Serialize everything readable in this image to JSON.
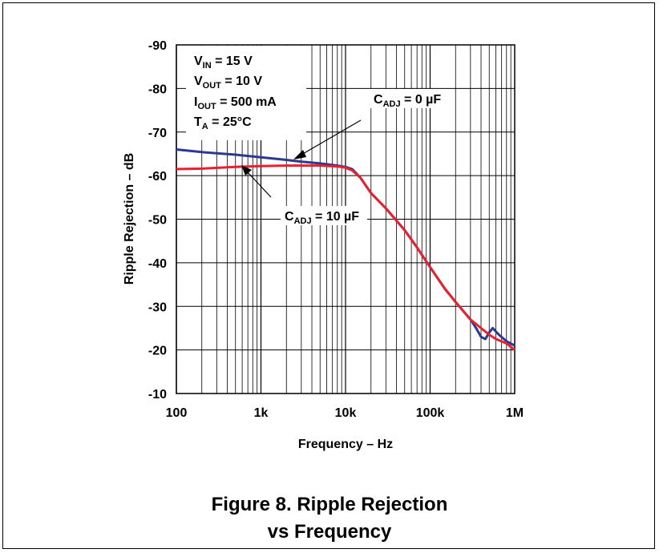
{
  "caption": {
    "line1": "Figure 8. Ripple Rejection",
    "line2": "vs Frequency"
  },
  "conditions": {
    "vin": {
      "main": "V",
      "sub": "IN",
      "rest": " = 15 V"
    },
    "vout": {
      "main": "V",
      "sub": "OUT",
      "rest": " = 10 V"
    },
    "iout": {
      "main": "I",
      "sub": "OUT",
      "rest": " = 500 mA"
    },
    "ta": {
      "main": "T",
      "sub": "A",
      "rest": " = 25°C"
    }
  },
  "annotations": {
    "cadj0": {
      "main": "C",
      "sub": "ADJ",
      "rest": " = 0 µF"
    },
    "cadj10": {
      "main": "C",
      "sub": "ADJ",
      "rest": " = 10 µF"
    }
  },
  "colors": {
    "blue": "#2b3990",
    "red": "#e8202f",
    "grid": "#000000"
  },
  "chart_data": {
    "type": "line",
    "xscale": "log",
    "xlim": [
      100,
      1000000
    ],
    "ylim": [
      -10,
      -90
    ],
    "xlabel": "Frequency – Hz",
    "ylabel": "Ripple Rejection – dB",
    "xticks": [
      100,
      1000,
      10000,
      100000,
      1000000
    ],
    "xtick_labels": [
      "100",
      "1k",
      "10k",
      "100k",
      "1M"
    ],
    "yticks": [
      -90,
      -80,
      -70,
      -60,
      -50,
      -40,
      -30,
      -20,
      -10
    ],
    "ytick_labels": [
      "-90",
      "-80",
      "-70",
      "-60",
      "-50",
      "-40",
      "-30",
      "-20",
      "-10"
    ],
    "grid": true,
    "series": [
      {
        "name": "CADJ = 0 µF",
        "color": "#2b3990",
        "points": [
          [
            100,
            -66
          ],
          [
            200,
            -65.4
          ],
          [
            500,
            -64.8
          ],
          [
            1000,
            -64.2
          ],
          [
            2000,
            -63.6
          ],
          [
            3000,
            -63.2
          ],
          [
            5000,
            -62.8
          ],
          [
            8000,
            -62.3
          ],
          [
            10000,
            -62
          ],
          [
            12000,
            -61.5
          ],
          [
            15000,
            -59.5
          ],
          [
            20000,
            -56
          ],
          [
            30000,
            -52.5
          ],
          [
            50000,
            -47.5
          ],
          [
            70000,
            -43.5
          ],
          [
            100000,
            -39
          ],
          [
            150000,
            -34
          ],
          [
            200000,
            -31
          ],
          [
            300000,
            -27
          ],
          [
            350000,
            -25
          ],
          [
            400000,
            -23
          ],
          [
            450000,
            -22.5
          ],
          [
            500000,
            -24
          ],
          [
            550000,
            -25
          ],
          [
            650000,
            -23.5
          ],
          [
            800000,
            -22
          ],
          [
            1000000,
            -21
          ]
        ]
      },
      {
        "name": "CADJ = 10 µF",
        "color": "#e8202f",
        "points": [
          [
            100,
            -61.5
          ],
          [
            200,
            -61.6
          ],
          [
            500,
            -62
          ],
          [
            1000,
            -62.2
          ],
          [
            2000,
            -62.3
          ],
          [
            5000,
            -62.3
          ],
          [
            8000,
            -62.1
          ],
          [
            10000,
            -61.8
          ],
          [
            12000,
            -61.2
          ],
          [
            15000,
            -59.5
          ],
          [
            20000,
            -56
          ],
          [
            30000,
            -52.5
          ],
          [
            50000,
            -47.5
          ],
          [
            70000,
            -43.5
          ],
          [
            100000,
            -39
          ],
          [
            150000,
            -34
          ],
          [
            200000,
            -31
          ],
          [
            300000,
            -27
          ],
          [
            400000,
            -25
          ],
          [
            500000,
            -23.5
          ],
          [
            600000,
            -22.5
          ],
          [
            800000,
            -21.5
          ],
          [
            1000000,
            -20
          ]
        ]
      }
    ]
  }
}
